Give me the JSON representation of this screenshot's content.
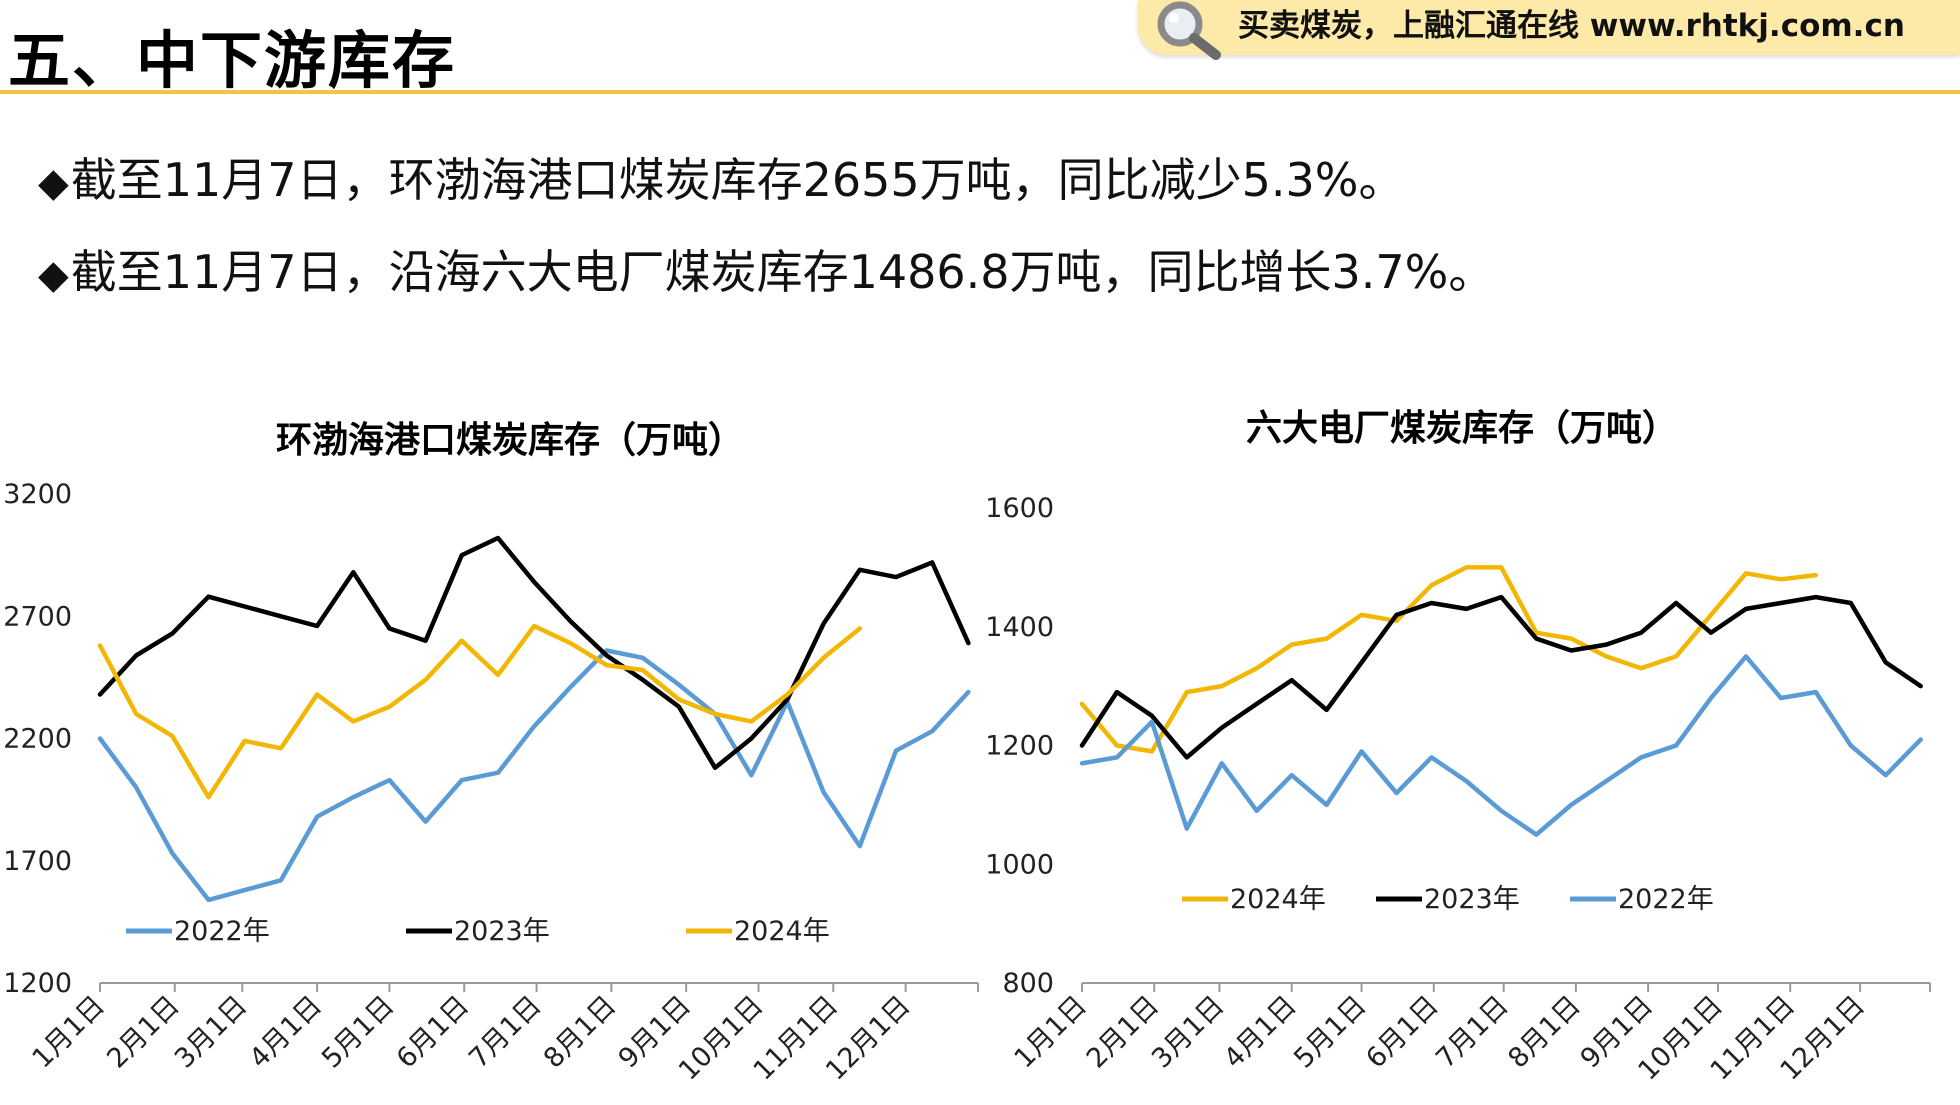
{
  "header": {
    "title": "五、中下游库存",
    "banner_text": "买卖煤炭，上融汇通在线 www.rhtkj.com.cn"
  },
  "bullets": [
    {
      "glyph": "◆",
      "text": "截至11月7日，环渤海港口煤炭库存2655万吨，同比减少5.3%。"
    },
    {
      "glyph": "◆",
      "text": "截至11月7日，沿海六大电厂煤炭库存1486.8万吨，同比增长3.7%。"
    }
  ],
  "colors": {
    "y2022": "#5b9bd5",
    "y2023": "#000000",
    "y2024": "#f2b705",
    "accent": "#f5c243"
  },
  "chart_data": [
    {
      "type": "line",
      "title": "环渤海港口煤炭库存（万吨）",
      "ylim": [
        1200,
        3200
      ],
      "yticks": [
        "3200",
        "2700",
        "2200",
        "1700",
        "1200"
      ],
      "xticks": [
        "1月1日",
        "2月1日",
        "3月1日",
        "4月1日",
        "5月1日",
        "6月1日",
        "7月1日",
        "8月1日",
        "9月1日",
        "10月1日",
        "11月1日",
        "12月1日"
      ],
      "x_days": [
        1,
        16,
        31,
        46,
        61,
        76,
        91,
        106,
        121,
        136,
        151,
        166,
        181,
        196,
        211,
        226,
        241,
        256,
        271,
        286,
        301,
        316,
        331,
        346,
        361
      ],
      "legend_order": [
        "2022年",
        "2023年",
        "2024年"
      ],
      "series": [
        {
          "name": "2022年",
          "values": [
            2200,
            2000,
            1730,
            1540,
            1580,
            1620,
            1880,
            1960,
            2030,
            1860,
            2030,
            2060,
            2250,
            2410,
            2560,
            2530,
            2420,
            2300,
            2050,
            2350,
            1980,
            1760,
            2150,
            2230,
            2390
          ]
        },
        {
          "name": "2023年",
          "values": [
            2380,
            2540,
            2630,
            2780,
            2740,
            2700,
            2660,
            2880,
            2650,
            2600,
            2950,
            3020,
            2840,
            2680,
            2540,
            2440,
            2330,
            2080,
            2200,
            2360,
            2670,
            2890,
            2860,
            2920,
            2590
          ]
        },
        {
          "name": "2024年",
          "values": [
            2580,
            2300,
            2210,
            1960,
            2190,
            2160,
            2380,
            2270,
            2330,
            2440,
            2600,
            2460,
            2660,
            2590,
            2500,
            2480,
            2360,
            2300,
            2270,
            2380,
            2530,
            2650
          ]
        }
      ]
    },
    {
      "type": "line",
      "title": "六大电厂煤炭库存（万吨）",
      "ylim": [
        800,
        1600
      ],
      "yticks": [
        "1600",
        "1400",
        "1200",
        "1000",
        "800"
      ],
      "xticks": [
        "1月1日",
        "2月1日",
        "3月1日",
        "4月1日",
        "5月1日",
        "6月1日",
        "7月1日",
        "8月1日",
        "9月1日",
        "10月1日",
        "11月1日",
        "12月1日"
      ],
      "x_days": [
        1,
        16,
        31,
        46,
        61,
        76,
        91,
        106,
        121,
        136,
        151,
        166,
        181,
        196,
        211,
        226,
        241,
        256,
        271,
        286,
        301,
        316,
        331,
        346,
        361
      ],
      "legend_order": [
        "2024年",
        "2023年",
        "2022年"
      ],
      "series": [
        {
          "name": "2024年",
          "values": [
            1270,
            1200,
            1190,
            1290,
            1300,
            1330,
            1370,
            1380,
            1420,
            1410,
            1470,
            1500,
            1500,
            1390,
            1380,
            1350,
            1330,
            1350,
            1420,
            1490,
            1480,
            1487
          ]
        },
        {
          "name": "2023年",
          "values": [
            1200,
            1290,
            1250,
            1180,
            1230,
            1270,
            1310,
            1260,
            1340,
            1420,
            1440,
            1430,
            1450,
            1380,
            1360,
            1370,
            1390,
            1440,
            1390,
            1430,
            1440,
            1450,
            1440,
            1340,
            1300
          ]
        },
        {
          "name": "2022年",
          "values": [
            1170,
            1180,
            1240,
            1060,
            1170,
            1090,
            1150,
            1100,
            1190,
            1120,
            1180,
            1140,
            1090,
            1050,
            1100,
            1140,
            1180,
            1200,
            1280,
            1350,
            1280,
            1290,
            1200,
            1150,
            1210
          ]
        }
      ]
    }
  ]
}
